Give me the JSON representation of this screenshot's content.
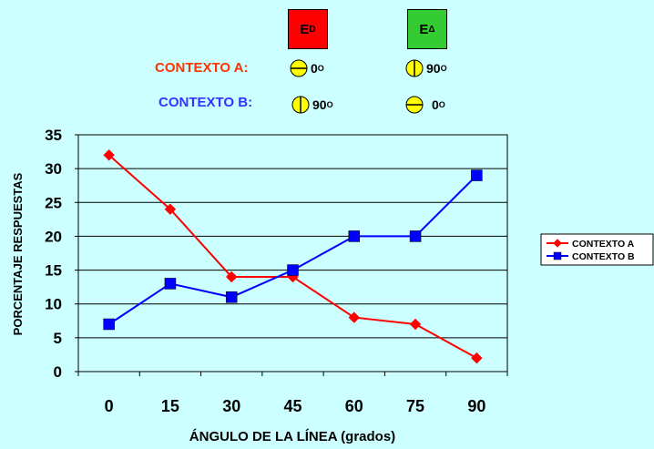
{
  "header": {
    "stimulus_d": {
      "base": "E",
      "sup": "D",
      "color": "#ff0000"
    },
    "stimulus_delta": {
      "base": "E",
      "sup": "Δ",
      "color": "#33cc33"
    },
    "context_a": {
      "label": "CONTEXTO A:",
      "color": "#ff3300",
      "d_value": "0",
      "delta_value": "90",
      "deg": "O"
    },
    "context_b": {
      "label": "CONTEXTO B:",
      "color": "#3333ff",
      "d_value": "90",
      "delta_value": "0",
      "deg": "O"
    }
  },
  "chart_data": {
    "type": "line",
    "categories": [
      "0",
      "15",
      "30",
      "45",
      "60",
      "75",
      "90"
    ],
    "series": [
      {
        "name": "CONTEXTO A",
        "values": [
          32,
          24,
          14,
          14,
          8,
          7,
          2
        ],
        "color": "#ff0000",
        "marker": "diamond"
      },
      {
        "name": "CONTEXTO B",
        "values": [
          7,
          13,
          11,
          15,
          20,
          20,
          29
        ],
        "color": "#0000ff",
        "marker": "square"
      }
    ],
    "xlabel": "ÁNGULO DE LA LÍNEA (grados)",
    "ylabel": "PORCENTAJE RESPUESTAS",
    "ylim": [
      0,
      35
    ],
    "yticks": [
      "0",
      "5",
      "10",
      "15",
      "20",
      "25",
      "30",
      "35"
    ],
    "grid": true,
    "plot_background": "#ccffff",
    "legend_placement": "right"
  }
}
